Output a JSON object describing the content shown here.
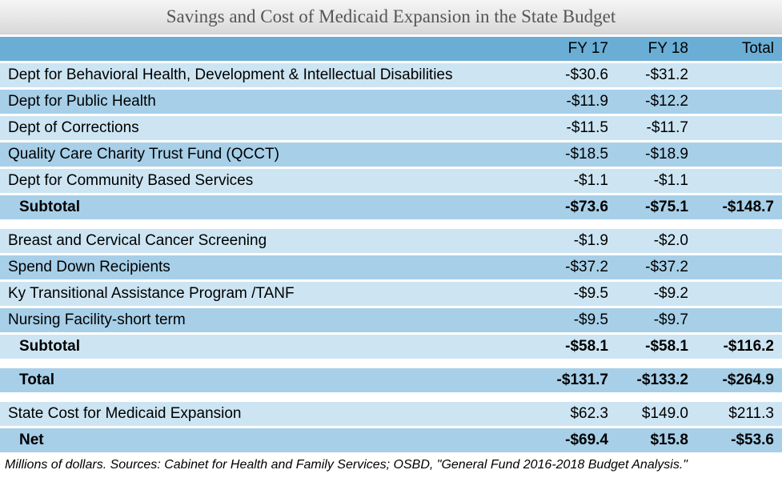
{
  "title": "Savings and Cost of Medicaid Expansion in the State Budget",
  "columns": {
    "c1": "",
    "c2": "FY 17",
    "c3": "FY 18",
    "c4": "Total"
  },
  "section1": {
    "rows": [
      {
        "label": "Dept for Behavioral Health, Development & Intellectual Disabilities",
        "fy17": "-$30.6",
        "fy18": "-$31.2",
        "total": ""
      },
      {
        "label": "Dept for Public Health",
        "fy17": "-$11.9",
        "fy18": "-$12.2",
        "total": ""
      },
      {
        "label": "Dept of Corrections",
        "fy17": "-$11.5",
        "fy18": "-$11.7",
        "total": ""
      },
      {
        "label": "Quality Care Charity Trust Fund (QCCT)",
        "fy17": "-$18.5",
        "fy18": "-$18.9",
        "total": ""
      },
      {
        "label": "Dept for Community Based Services",
        "fy17": "-$1.1",
        "fy18": "-$1.1",
        "total": ""
      }
    ],
    "subtotal": {
      "label": "Subtotal",
      "fy17": "-$73.6",
      "fy18": "-$75.1",
      "total": "-$148.7"
    }
  },
  "section2": {
    "rows": [
      {
        "label": "Breast and Cervical Cancer Screening",
        "fy17": "-$1.9",
        "fy18": "-$2.0",
        "total": ""
      },
      {
        "label": "Spend Down Recipients",
        "fy17": "-$37.2",
        "fy18": "-$37.2",
        "total": ""
      },
      {
        "label": "Ky Transitional Assistance Program /TANF",
        "fy17": "-$9.5",
        "fy18": "-$9.2",
        "total": ""
      },
      {
        "label": "Nursing Facility-short term",
        "fy17": "-$9.5",
        "fy18": "-$9.7",
        "total": ""
      }
    ],
    "subtotal": {
      "label": "Subtotal",
      "fy17": "-$58.1",
      "fy18": "-$58.1",
      "total": "-$116.2"
    }
  },
  "total_row": {
    "label": "Total",
    "fy17": "-$131.7",
    "fy18": "-$133.2",
    "total": "-$264.9"
  },
  "state_cost": {
    "label": "State Cost for Medicaid Expansion",
    "fy17": "$62.3",
    "fy18": "$149.0",
    "total": "$211.3"
  },
  "net_row": {
    "label": "Net",
    "fy17": "-$69.4",
    "fy18": "$15.8",
    "total": "-$53.6"
  },
  "footnote": "Millions of dollars. Sources: Cabinet for Health and Family Services; OSBD, \"General Fund 2016-2018 Budget Analysis.\"",
  "colors": {
    "header_bg": "#6aaed6",
    "light_bg": "#cde5f3",
    "med_bg": "#a7cfe8",
    "title_gradient_top": "#f5f5f5",
    "title_gradient_bottom": "#d8d8d8"
  }
}
